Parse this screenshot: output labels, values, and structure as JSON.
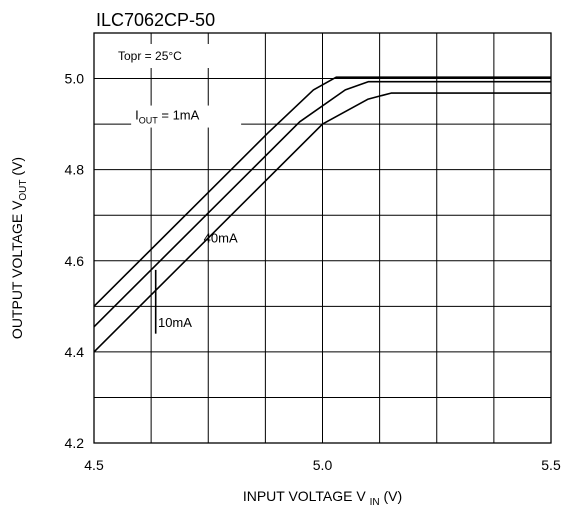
{
  "chart_data": {
    "type": "line",
    "title": "ILC7062CP-50",
    "condition": "Topr = 25°C",
    "xlabel": {
      "main": "INPUT VOLTAGE V",
      "sub": "IN",
      "unit": " (V)"
    },
    "ylabel": {
      "main": "OUTPUT VOLTAGE V",
      "sub": "OUT",
      "unit": " (V)"
    },
    "xlim": [
      4.5,
      5.5
    ],
    "ylim": [
      4.2,
      5.1
    ],
    "x_ticks": [
      {
        "value": 4.5,
        "label": "4.5"
      },
      {
        "value": 5.0,
        "label": "5.0"
      },
      {
        "value": 5.5,
        "label": "5.5"
      }
    ],
    "y_ticks": [
      {
        "value": 4.2,
        "label": "4.2"
      },
      {
        "value": 4.4,
        "label": "4.4"
      },
      {
        "value": 4.6,
        "label": "4.6"
      },
      {
        "value": 4.8,
        "label": "4.8"
      },
      {
        "value": 5.0,
        "label": "5.0"
      }
    ],
    "x_grid": [
      4.5,
      4.625,
      4.75,
      4.875,
      5.0,
      5.125,
      5.25,
      5.375,
      5.5
    ],
    "y_grid": [
      4.2,
      4.3,
      4.4,
      4.5,
      4.6,
      4.7,
      4.8,
      4.9,
      5.0,
      5.1
    ],
    "grid": true,
    "series": [
      {
        "name": "IOUT = 1mA",
        "x": [
          4.5,
          4.88,
          4.98,
          5.03,
          5.5
        ],
        "y": [
          4.5,
          4.88,
          4.975,
          5.003,
          5.003
        ]
      },
      {
        "name": "10mA",
        "x": [
          4.5,
          4.95,
          5.05,
          5.1,
          5.5
        ],
        "y": [
          4.455,
          4.905,
          4.975,
          4.993,
          4.993
        ]
      },
      {
        "name": "40mA",
        "x": [
          4.5,
          5.0,
          5.1,
          5.15,
          5.5
        ],
        "y": [
          4.4,
          4.9,
          4.955,
          4.968,
          4.968
        ]
      }
    ],
    "annotations": [
      {
        "text_main": "I",
        "text_sub": "OUT",
        "text_rest": " = 1mA",
        "x": 4.59,
        "y": 4.91
      },
      {
        "text_main": "40mA",
        "x": 4.74,
        "y": 4.64
      },
      {
        "text_main": "10mA",
        "x": 4.64,
        "y": 4.455
      }
    ],
    "marker_10mA": {
      "x": 4.635,
      "y1": 4.44,
      "y2": 4.58
    }
  }
}
